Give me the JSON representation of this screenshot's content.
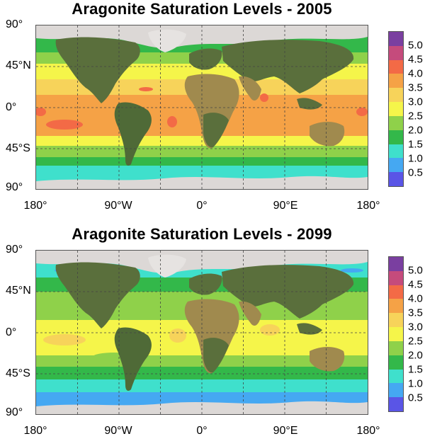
{
  "colors": {
    "ocean_bands": [
      "#5a55e6",
      "#45a8f2",
      "#3fe0cc",
      "#33b84a",
      "#8fd14a",
      "#f5f54a",
      "#f7d35a",
      "#f5a246",
      "#f36a46",
      "#c54b7c",
      "#7a3fa0"
    ],
    "land": "#5a6f3c",
    "desert": "#a08a4e",
    "ice": "#dcd8d6",
    "grid": "#444444"
  },
  "legend": {
    "ticks": [
      "5.0",
      "4.5",
      "4.0",
      "3.5",
      "3.0",
      "2.5",
      "2.0",
      "1.5",
      "1.0",
      "0.5"
    ]
  },
  "axes": {
    "y_labels": [
      "90°",
      "45°N",
      "0°",
      "45°S",
      "90°"
    ],
    "x_labels": [
      "180°",
      "90°W",
      "0°",
      "90°E",
      "180°"
    ]
  },
  "panels": [
    {
      "title": "Aragonite Saturation Levels - 2005",
      "saturation_by_latitude_band": [
        {
          "band": "north-polar",
          "value": "2.0"
        },
        {
          "band": "north-mid",
          "value": "3.0"
        },
        {
          "band": "tropics",
          "value": "3.5"
        },
        {
          "band": "south-mid",
          "value": "2.5"
        },
        {
          "band": "southern-ocean",
          "value": "1.5"
        }
      ]
    },
    {
      "title": "Aragonite Saturation Levels - 2099",
      "saturation_by_latitude_band": [
        {
          "band": "north-polar",
          "value": "1.5"
        },
        {
          "band": "north-mid",
          "value": "2.0"
        },
        {
          "band": "tropics",
          "value": "3.0"
        },
        {
          "band": "south-mid",
          "value": "2.0"
        },
        {
          "band": "southern-ocean",
          "value": "1.0"
        }
      ]
    }
  ]
}
